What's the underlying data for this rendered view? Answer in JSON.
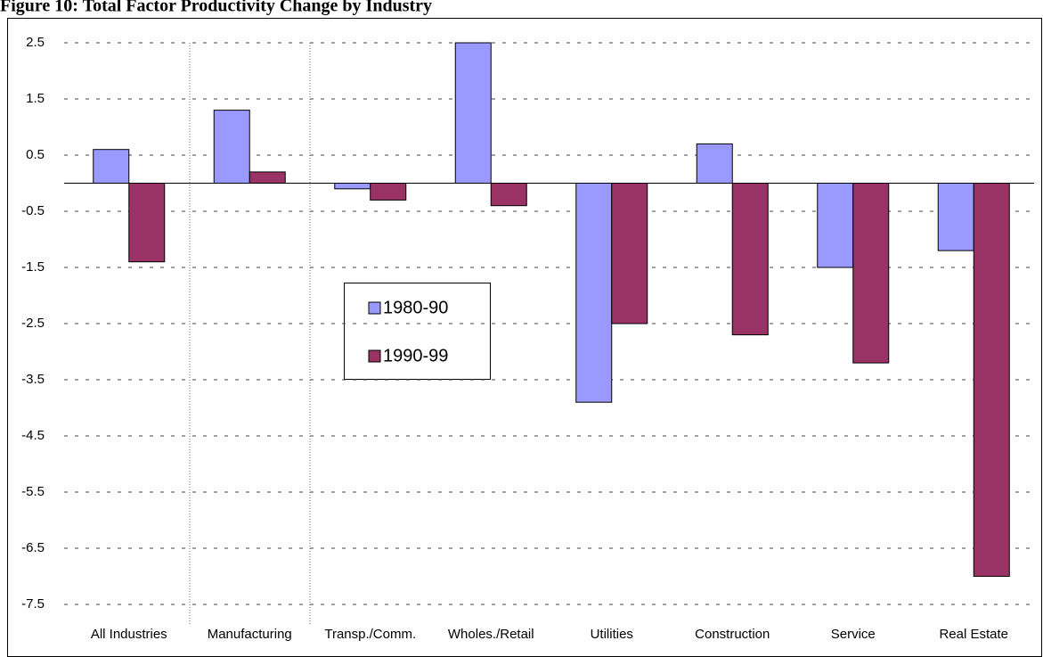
{
  "chart_data": {
    "type": "bar",
    "title": "Figure 10: Total Factor Productivity Change by Industry",
    "categories": [
      "All Industries",
      "Manufacturing",
      "Transp./Comm.",
      "Wholes./Retail",
      "Utilities",
      "Construction",
      "Service",
      "Real Estate"
    ],
    "series": [
      {
        "name": "1980-90",
        "color": "#9999ff",
        "values": [
          0.6,
          1.3,
          -0.1,
          2.5,
          -3.9,
          0.7,
          -1.5,
          -1.2
        ]
      },
      {
        "name": "1990-99",
        "color": "#993366",
        "values": [
          -1.4,
          0.2,
          -0.3,
          -0.4,
          -2.5,
          -2.7,
          -3.2,
          -7.0
        ]
      }
    ],
    "ylim": [
      -7.5,
      2.5
    ],
    "yticks": [
      2.5,
      1.5,
      0.5,
      -0.5,
      -1.5,
      -2.5,
      -3.5,
      -4.5,
      -5.5,
      -6.5,
      -7.5
    ],
    "grid": true
  }
}
